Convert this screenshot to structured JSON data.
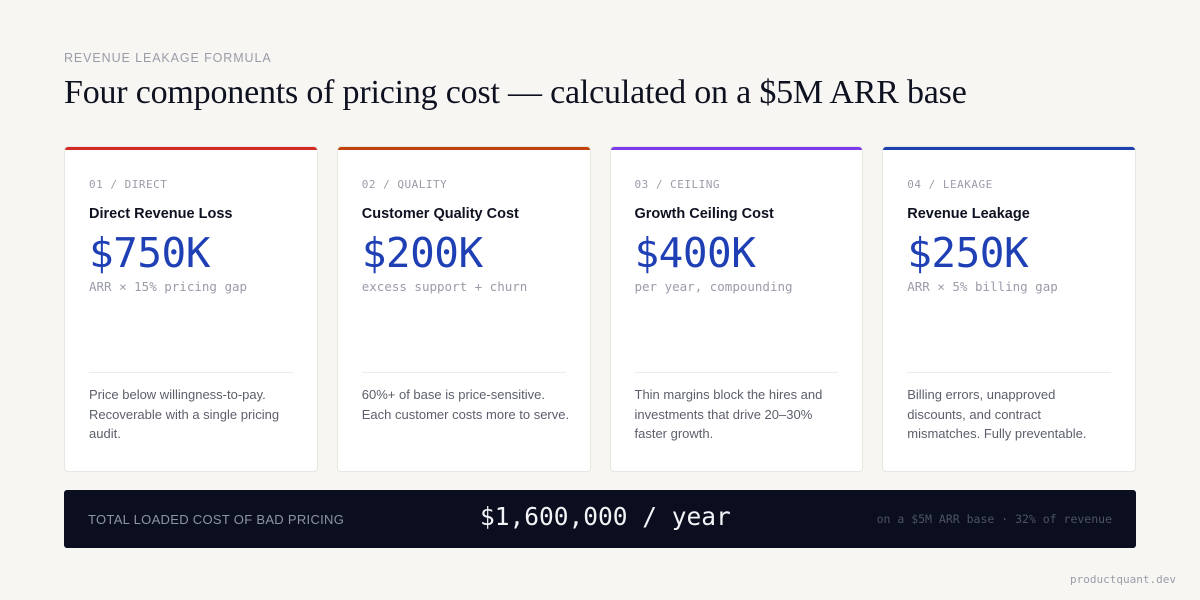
{
  "header": {
    "eyebrow": "REVENUE LEAKAGE FORMULA",
    "title": "Four components of pricing cost — calculated on a $5M ARR base"
  },
  "cards": [
    {
      "tag": "01 / DIRECT",
      "name": "Direct Revenue Loss",
      "value": "$750K",
      "formula": "ARR × 15% pricing gap",
      "description": "Price below willingness-to-pay. Recoverable with a single pricing audit.",
      "accent_color": "#d42a24"
    },
    {
      "tag": "02 / QUALITY",
      "name": "Customer Quality Cost",
      "value": "$200K",
      "formula": "excess support + churn",
      "description": "60%+ of base is price-sensitive. Each customer costs more to serve.",
      "accent_color": "#c2410c"
    },
    {
      "tag": "03 / CEILING",
      "name": "Growth Ceiling Cost",
      "value": "$400K",
      "formula": "per year, compounding",
      "description": "Thin margins block the hires and investments that drive 20–30% faster growth.",
      "accent_color": "#7c3aed"
    },
    {
      "tag": "04 / LEAKAGE",
      "name": "Revenue Leakage",
      "value": "$250K",
      "formula": "ARR × 5% billing gap",
      "description": "Billing errors, unapproved discounts, and contract mismatches. Fully preventable.",
      "accent_color": "#1e40af"
    }
  ],
  "total": {
    "label": "TOTAL LOADED COST OF BAD PRICING",
    "amount": "$1,600,000 / year",
    "note": "on a $5M ARR base · 32% of revenue"
  },
  "footer": {
    "source": "productquant.dev"
  },
  "colors": {
    "background": "#f7f6f3",
    "value_blue": "#1f3fb5",
    "total_bar": "#0a0e1e"
  }
}
